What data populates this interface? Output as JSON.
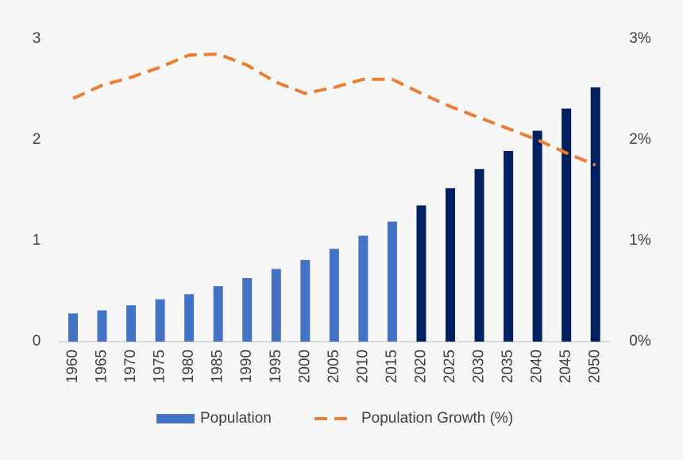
{
  "chart_data": {
    "type": "bar-line",
    "categories": [
      "1960",
      "1965",
      "1970",
      "1975",
      "1980",
      "1985",
      "1990",
      "1995",
      "2000",
      "2005",
      "2010",
      "2015",
      "2020",
      "2025",
      "2030",
      "2035",
      "2040",
      "2045",
      "2050"
    ],
    "series": [
      {
        "name": "Population",
        "type": "bar",
        "color": "#4472c4",
        "colors": [
          "#4472c4",
          "#4472c4",
          "#4472c4",
          "#4472c4",
          "#4472c4",
          "#4472c4",
          "#4472c4",
          "#4472c4",
          "#4472c4",
          "#4472c4",
          "#4472c4",
          "#4472c4",
          "#002060",
          "#002060",
          "#002060",
          "#002060",
          "#002060",
          "#002060",
          "#002060"
        ],
        "values": [
          0.28,
          0.31,
          0.36,
          0.42,
          0.47,
          0.55,
          0.63,
          0.72,
          0.81,
          0.92,
          1.05,
          1.19,
          1.35,
          1.52,
          1.71,
          1.89,
          2.09,
          2.31,
          2.52
        ]
      },
      {
        "name": "Population Growth (%)",
        "type": "line",
        "axis": "y2",
        "color": "#ed7d31",
        "dashed": true,
        "values": [
          2.41,
          2.54,
          2.62,
          2.72,
          2.84,
          2.85,
          2.74,
          2.57,
          2.46,
          2.52,
          2.6,
          2.6,
          2.46,
          2.33,
          2.22,
          2.11,
          2.0,
          1.87,
          1.75
        ]
      }
    ],
    "ylim": [
      0,
      3
    ],
    "yticks": [
      0,
      1,
      2,
      3
    ],
    "y2lim": [
      0,
      3
    ],
    "y2ticks": [
      {
        "value": 0,
        "label": "0%"
      },
      {
        "value": 1,
        "label": "1%"
      },
      {
        "value": 2,
        "label": "2%"
      },
      {
        "value": 3,
        "label": "3%"
      }
    ],
    "grid": false,
    "legend": "bottom"
  }
}
